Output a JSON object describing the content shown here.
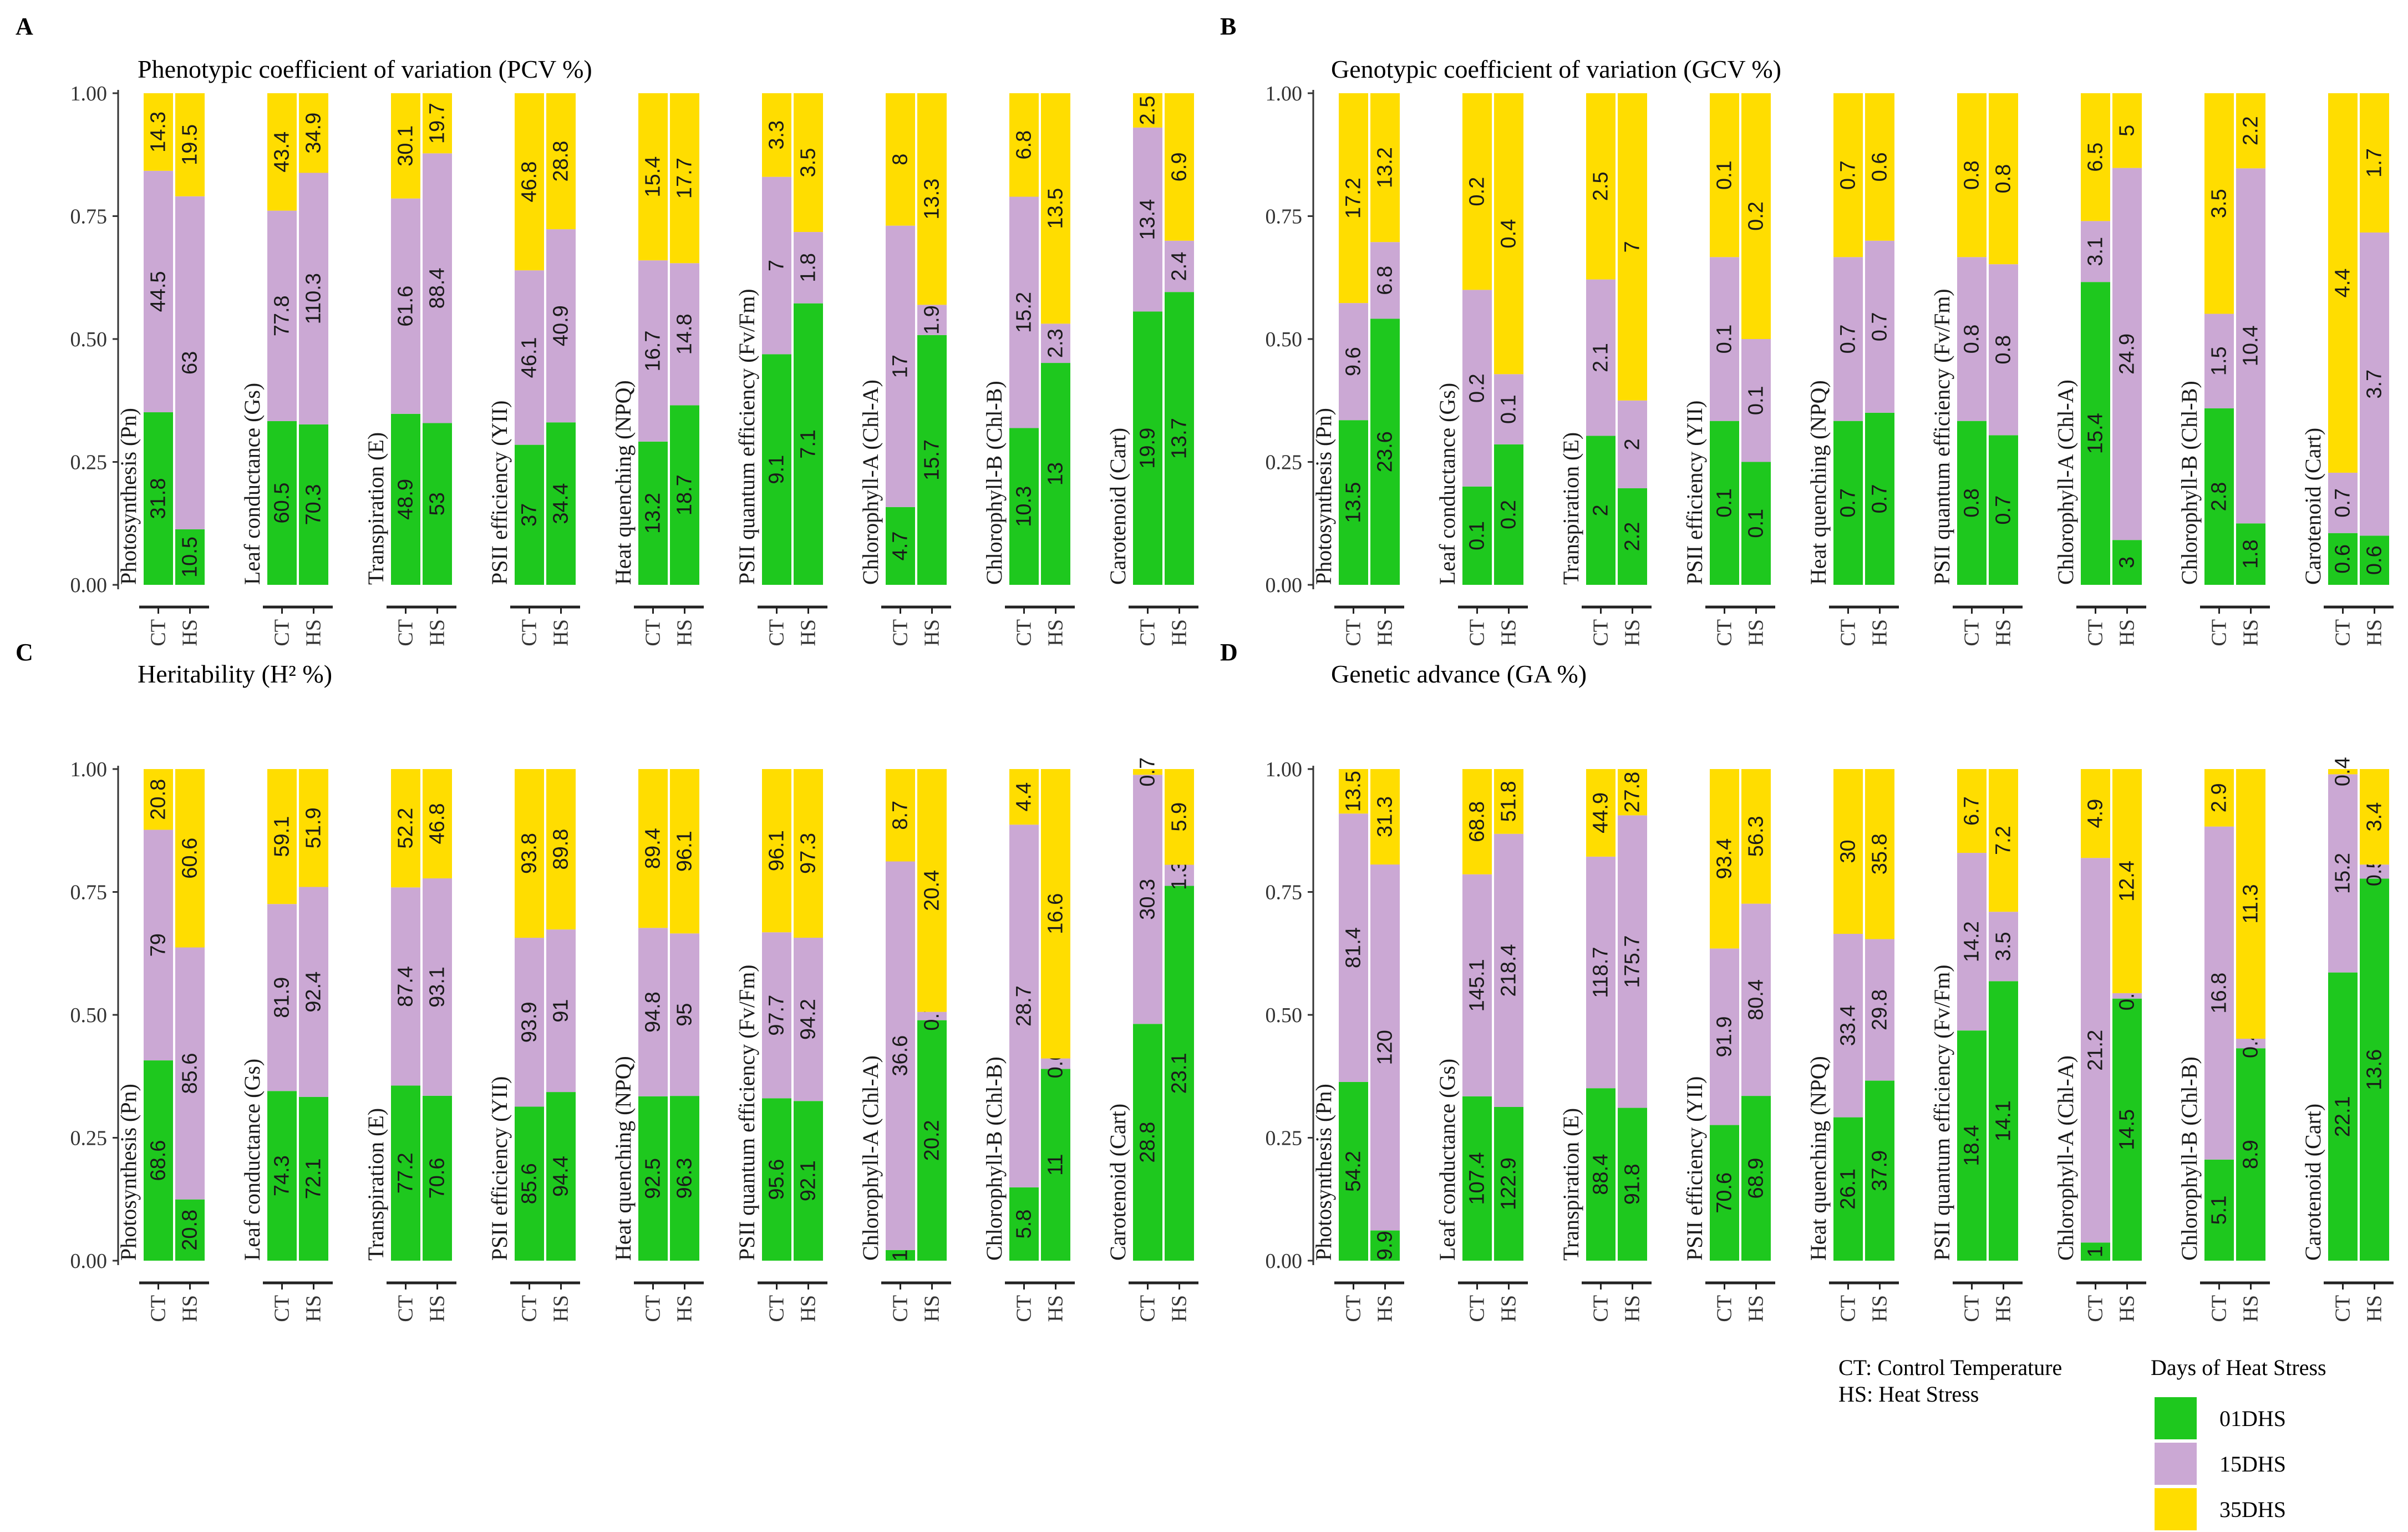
{
  "legend": {
    "title": "Days of Heat Stress",
    "items": [
      {
        "label": "01DHS",
        "color": "#1ec81e"
      },
      {
        "label": "15DHS",
        "color": "#cba8d4"
      },
      {
        "label": "35DHS",
        "color": "#ffdd00"
      }
    ]
  },
  "notes": [
    "CT: Control Temperature",
    "HS: Heat Stress"
  ],
  "chart_data": [
    {
      "type": "bar",
      "stacked": true,
      "normalized": true,
      "panel": "A",
      "title": "Phenotypic coefficient of variation (PCV %)",
      "yticks": [
        "0.00",
        "0.25",
        "0.50",
        "0.75",
        "1.00"
      ],
      "ylim": [
        0,
        1
      ],
      "groups": [
        "CT",
        "HS"
      ],
      "series": [
        "01DHS",
        "15DHS",
        "35DHS"
      ],
      "facets": [
        {
          "name": "Photosynthesis (Pn)",
          "CT": [
            31.8,
            44.5,
            14.3
          ],
          "HS": [
            10.5,
            63,
            19.5
          ]
        },
        {
          "name": "Leaf conductance (Gs)",
          "CT": [
            60.5,
            77.8,
            43.4
          ],
          "HS": [
            70.3,
            110.3,
            34.9
          ]
        },
        {
          "name": "Transpiration (E)",
          "CT": [
            48.9,
            61.6,
            30.1
          ],
          "HS": [
            53,
            88.4,
            19.7
          ]
        },
        {
          "name": "PSII efficiency (YII)",
          "CT": [
            37,
            46.1,
            46.8
          ],
          "HS": [
            34.4,
            40.9,
            28.8
          ]
        },
        {
          "name": "Heat quenching (NPQ)",
          "CT": [
            13.2,
            16.7,
            15.4
          ],
          "HS": [
            18.7,
            14.8,
            17.7
          ]
        },
        {
          "name": "PSII quantum efficiency (Fv/Fm)",
          "CT": [
            9.1,
            7,
            3.3
          ],
          "HS": [
            7.1,
            1.8,
            3.5
          ]
        },
        {
          "name": "Chlorophyll-A (Chl-A)",
          "CT": [
            4.7,
            17,
            8
          ],
          "HS": [
            15.7,
            1.9,
            13.3
          ]
        },
        {
          "name": "Chlorophyll-B (Chl-B)",
          "CT": [
            10.3,
            15.2,
            6.8
          ],
          "HS": [
            13,
            2.3,
            13.5
          ]
        },
        {
          "name": "Carotenoid (Cart)",
          "CT": [
            19.9,
            13.4,
            2.5
          ],
          "HS": [
            13.7,
            2.4,
            6.9
          ]
        }
      ]
    },
    {
      "type": "bar",
      "stacked": true,
      "normalized": true,
      "panel": "B",
      "title": "Genotypic coefficient of variation (GCV %)",
      "yticks": [
        "0.00",
        "0.25",
        "0.50",
        "0.75",
        "1.00"
      ],
      "ylim": [
        0,
        1
      ],
      "groups": [
        "CT",
        "HS"
      ],
      "series": [
        "01DHS",
        "15DHS",
        "35DHS"
      ],
      "facets": [
        {
          "name": "Photosynthesis (Pn)",
          "CT": [
            13.5,
            9.6,
            17.2
          ],
          "HS": [
            23.6,
            6.8,
            13.2
          ]
        },
        {
          "name": "Leaf conductance (Gs)",
          "CT": [
            0.1,
            0.2,
            0.2
          ],
          "HS": [
            0.2,
            0.1,
            0.4
          ]
        },
        {
          "name": "Transpiration (E)",
          "CT": [
            2,
            2.1,
            2.5
          ],
          "HS": [
            2.2,
            2,
            7
          ]
        },
        {
          "name": "PSII efficiency (YII)",
          "CT": [
            0.1,
            0.1,
            0.1
          ],
          "HS": [
            0.1,
            0.1,
            0.2
          ]
        },
        {
          "name": "Heat quenching (NPQ)",
          "CT": [
            0.7,
            0.7,
            0.7
          ],
          "HS": [
            0.7,
            0.7,
            0.6
          ]
        },
        {
          "name": "PSII quantum efficiency (Fv/Fm)",
          "CT": [
            0.8,
            0.8,
            0.8
          ],
          "HS": [
            0.7,
            0.8,
            0.8
          ]
        },
        {
          "name": "Chlorophyll-A (Chl-A)",
          "CT": [
            15.4,
            3.1,
            6.5
          ],
          "HS": [
            3,
            24.9,
            5
          ]
        },
        {
          "name": "Chlorophyll-B (Chl-B)",
          "CT": [
            2.8,
            1.5,
            3.5
          ],
          "HS": [
            1.8,
            10.4,
            2.2
          ]
        },
        {
          "name": "Carotenoid (Cart)",
          "CT": [
            0.6,
            0.7,
            4.4
          ],
          "HS": [
            0.6,
            3.7,
            1.7
          ]
        }
      ]
    },
    {
      "type": "bar",
      "stacked": true,
      "normalized": true,
      "panel": "C",
      "title": "Heritability (H² %)",
      "yticks": [
        "0.00",
        "0.25",
        "0.50",
        "0.75",
        "1.00"
      ],
      "ylim": [
        0,
        1
      ],
      "groups": [
        "CT",
        "HS"
      ],
      "series": [
        "01DHS",
        "15DHS",
        "35DHS"
      ],
      "facets": [
        {
          "name": "Photosynthesis (Pn)",
          "CT": [
            68.6,
            79,
            20.8
          ],
          "HS": [
            20.8,
            85.6,
            60.6
          ]
        },
        {
          "name": "Leaf conductance (Gs)",
          "CT": [
            74.3,
            81.9,
            59.1
          ],
          "HS": [
            72.1,
            92.4,
            51.9
          ]
        },
        {
          "name": "Transpiration (E)",
          "CT": [
            77.2,
            87.4,
            52.2
          ],
          "HS": [
            70.6,
            93.1,
            46.8
          ]
        },
        {
          "name": "PSII efficiency (YII)",
          "CT": [
            85.6,
            93.9,
            93.8
          ],
          "HS": [
            94.4,
            91,
            89.8
          ]
        },
        {
          "name": "Heat quenching (NPQ)",
          "CT": [
            92.5,
            94.8,
            89.4
          ],
          "HS": [
            96.3,
            95,
            96.1
          ]
        },
        {
          "name": "PSII quantum efficiency (Fv/Fm)",
          "CT": [
            95.6,
            97.7,
            96.1
          ],
          "HS": [
            92.1,
            94.2,
            97.3
          ]
        },
        {
          "name": "Chlorophyll-A (Chl-A)",
          "CT": [
            1,
            36.6,
            8.7
          ],
          "HS": [
            20.2,
            0.7,
            20.4
          ]
        },
        {
          "name": "Chlorophyll-B (Chl-B)",
          "CT": [
            5.8,
            28.7,
            4.4
          ],
          "HS": [
            11,
            0.6,
            16.6
          ]
        },
        {
          "name": "Carotenoid (Cart)",
          "CT": [
            28.8,
            30.3,
            0.7
          ],
          "HS": [
            23.1,
            1.3,
            5.9
          ]
        }
      ]
    },
    {
      "type": "bar",
      "stacked": true,
      "normalized": true,
      "panel": "D",
      "title": "Genetic advance (GA %)",
      "yticks": [
        "0.00",
        "0.25",
        "0.50",
        "0.75",
        "1.00"
      ],
      "ylim": [
        0,
        1
      ],
      "groups": [
        "CT",
        "HS"
      ],
      "series": [
        "01DHS",
        "15DHS",
        "35DHS"
      ],
      "facets": [
        {
          "name": "Photosynthesis (Pn)",
          "CT": [
            54.2,
            81.4,
            13.5
          ],
          "HS": [
            9.9,
            120,
            31.3
          ]
        },
        {
          "name": "Leaf conductance (Gs)",
          "CT": [
            107.4,
            145.1,
            68.8
          ],
          "HS": [
            122.9,
            218.4,
            51.8
          ]
        },
        {
          "name": "Transpiration (E)",
          "CT": [
            88.4,
            118.7,
            44.9
          ],
          "HS": [
            91.8,
            175.7,
            27.8
          ]
        },
        {
          "name": "PSII efficiency (YII)",
          "CT": [
            70.6,
            91.9,
            93.4
          ],
          "HS": [
            68.9,
            80.4,
            56.3
          ]
        },
        {
          "name": "Heat quenching (NPQ)",
          "CT": [
            26.1,
            33.4,
            30
          ],
          "HS": [
            37.9,
            29.8,
            35.8
          ]
        },
        {
          "name": "PSII quantum efficiency (Fv/Fm)",
          "CT": [
            18.4,
            14.2,
            6.7
          ],
          "HS": [
            14.1,
            3.5,
            7.2
          ]
        },
        {
          "name": "Chlorophyll-A (Chl-A)",
          "CT": [
            1,
            21.2,
            4.9
          ],
          "HS": [
            14.5,
            0.3,
            12.4
          ]
        },
        {
          "name": "Chlorophyll-B (Chl-B)",
          "CT": [
            5.1,
            16.8,
            2.9
          ],
          "HS": [
            8.9,
            0.4,
            11.3
          ]
        },
        {
          "name": "Carotenoid (Cart)",
          "CT": [
            22.1,
            15.2,
            0.4
          ],
          "HS": [
            13.6,
            0.5,
            3.4
          ]
        }
      ]
    }
  ]
}
